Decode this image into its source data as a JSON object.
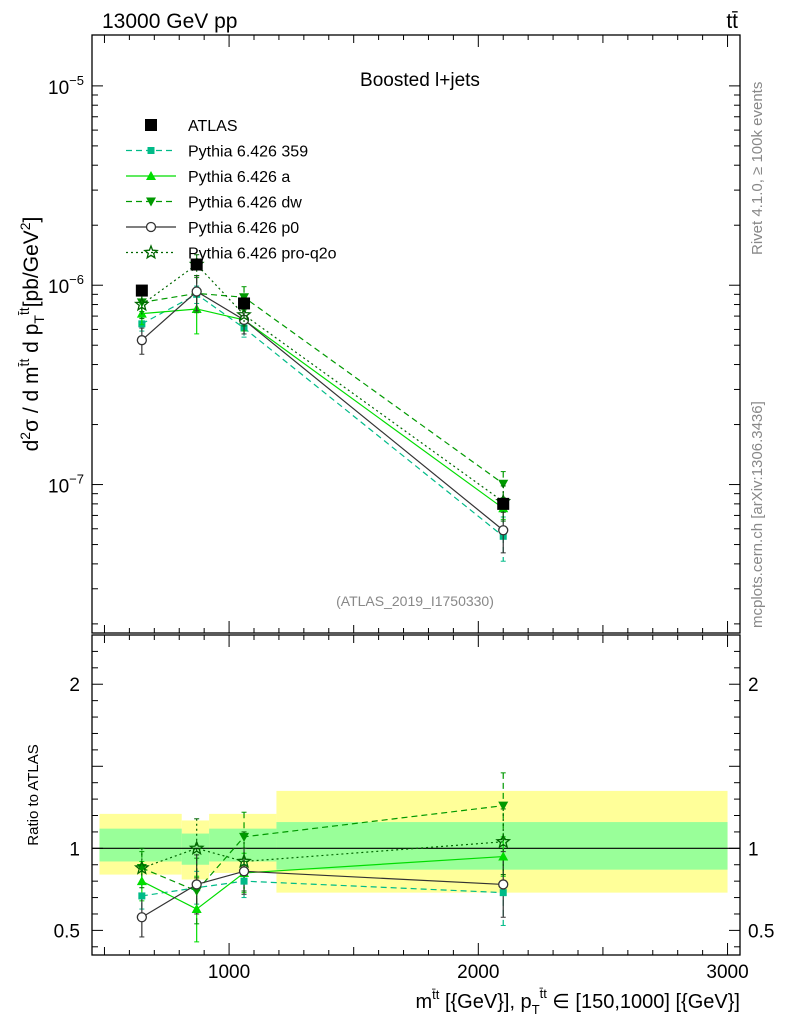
{
  "header": {
    "energy_label": "13000 GeV pp",
    "process_label": "tt̄"
  },
  "side_labels": {
    "rivet": "Rivet 4.1.0, ≥ 100k events",
    "mcplots": "mcplots.cern.ch [arXiv:1306.3436]"
  },
  "chart_data": [
    {
      "type": "line",
      "panel": "main",
      "title": "Boosted l+jets",
      "analysis_id": "(ATLAS_2019_I1750330)",
      "yscale": "log",
      "ylabel_parts": [
        "d",
        "2",
        "σ / d m",
        "t̄t",
        " d p",
        "T",
        "t̄t",
        "[pb/GeV",
        "2",
        "]"
      ],
      "xlim": [
        450,
        3050
      ],
      "ylim": [
        1.8e-08,
        1.8e-05
      ],
      "yticks": [
        {
          "value": 1e-07,
          "base": "10",
          "exp": "−7"
        },
        {
          "value": 1e-06,
          "base": "10",
          "exp": "−6"
        },
        {
          "value": 1e-05,
          "base": "10",
          "exp": "−5"
        }
      ],
      "legend": {
        "position": "top-left",
        "entries": [
          "ATLAS",
          "Pythia 6.426 359",
          "Pythia 6.426 a",
          "Pythia 6.426 dw",
          "Pythia 6.426 p0",
          "Pythia 6.426 pro-q2o"
        ]
      },
      "x": [
        650,
        870,
        1060,
        2100
      ],
      "series": [
        {
          "name": "ATLAS",
          "color": "#000000",
          "marker": "square",
          "values": [
            9.4e-07,
            1.27e-06,
            8.1e-07,
            8e-08
          ]
        },
        {
          "name": "Pythia 6.426 359",
          "color": "#00bb88",
          "marker": "small-square",
          "dash": "dashed",
          "values": [
            6.4e-07,
            9e-07,
            6.1e-07,
            5.5e-08
          ],
          "err": [
            0.08,
            0.1,
            0.1,
            0.25
          ]
        },
        {
          "name": "Pythia 6.426 a",
          "color": "#00dd00",
          "marker": "triangle-up",
          "dash": "solid",
          "values": [
            7.2e-07,
            7.6e-07,
            6.7e-07,
            7.6e-08
          ],
          "err": [
            0.12,
            0.25,
            0.12,
            0.12
          ]
        },
        {
          "name": "Pythia 6.426 dw",
          "color": "#009900",
          "marker": "triangle-down",
          "dash": "dashed",
          "values": [
            8.2e-07,
            9.1e-07,
            8.7e-07,
            1.01e-07
          ],
          "err": [
            0.1,
            0.2,
            0.13,
            0.15
          ]
        },
        {
          "name": "Pythia 6.426 p0",
          "color": "#333333",
          "marker": "circle",
          "dash": "solid",
          "values": [
            5.3e-07,
            9.3e-07,
            6.7e-07,
            5.9e-08
          ],
          "err": [
            0.15,
            0.2,
            0.15,
            0.23
          ]
        },
        {
          "name": "Pythia 6.426 pro-q2o",
          "color": "#006600",
          "marker": "star",
          "dash": "dotted",
          "values": [
            8e-07,
            1.27e-06,
            7.1e-07,
            8.2e-08
          ],
          "err": [
            0.15,
            0.12,
            0.12,
            0.2
          ]
        }
      ]
    },
    {
      "type": "line",
      "panel": "ratio",
      "ylabel": "Ratio to ATLAS",
      "xlabel_parts": [
        "m",
        "t̄t",
        " [{GeV}], p",
        "T",
        "t̄t",
        " ∈ [150,1000] [{GeV}]"
      ],
      "xlim": [
        450,
        3050
      ],
      "ylim": [
        0.35,
        2.3
      ],
      "xticks": [
        1000,
        2000,
        3000
      ],
      "yticks": [
        0.5,
        1,
        2
      ],
      "bands": [
        {
          "x0": 480,
          "x1": 810,
          "inner": [
            0.92,
            1.12
          ],
          "outer": [
            0.84,
            1.21
          ]
        },
        {
          "x0": 810,
          "x1": 920,
          "inner": [
            0.9,
            1.09
          ],
          "outer": [
            0.81,
            1.17
          ]
        },
        {
          "x0": 920,
          "x1": 1190,
          "inner": [
            0.92,
            1.12
          ],
          "outer": [
            0.85,
            1.21
          ]
        },
        {
          "x0": 1190,
          "x1": 3000,
          "inner": [
            0.87,
            1.16
          ],
          "outer": [
            0.73,
            1.35
          ]
        }
      ],
      "x": [
        650,
        870,
        1060,
        2100
      ],
      "series": [
        {
          "name": "Pythia 6.426 359",
          "color": "#00bb88",
          "marker": "small-square",
          "dash": "dashed",
          "values": [
            0.71,
            0.76,
            0.8,
            0.73
          ],
          "err": [
            0.08,
            0.1,
            0.1,
            0.2
          ]
        },
        {
          "name": "Pythia 6.426 a",
          "color": "#00dd00",
          "marker": "triangle-up",
          "dash": "solid",
          "values": [
            0.8,
            0.63,
            0.85,
            0.95
          ],
          "err": [
            0.12,
            0.2,
            0.12,
            0.12
          ]
        },
        {
          "name": "Pythia 6.426 dw",
          "color": "#009900",
          "marker": "triangle-down",
          "dash": "dashed",
          "values": [
            0.88,
            0.74,
            1.07,
            1.26
          ],
          "err": [
            0.1,
            0.2,
            0.15,
            0.2
          ]
        },
        {
          "name": "Pythia 6.426 p0",
          "color": "#333333",
          "marker": "circle",
          "dash": "solid",
          "values": [
            0.58,
            0.78,
            0.86,
            0.78
          ],
          "err": [
            0.12,
            0.18,
            0.14,
            0.2
          ]
        },
        {
          "name": "Pythia 6.426 pro-q2o",
          "color": "#006600",
          "marker": "star",
          "dash": "dotted",
          "values": [
            0.88,
            1.0,
            0.92,
            1.04
          ],
          "err": [
            0.12,
            0.18,
            0.18,
            0.2
          ]
        }
      ]
    }
  ]
}
